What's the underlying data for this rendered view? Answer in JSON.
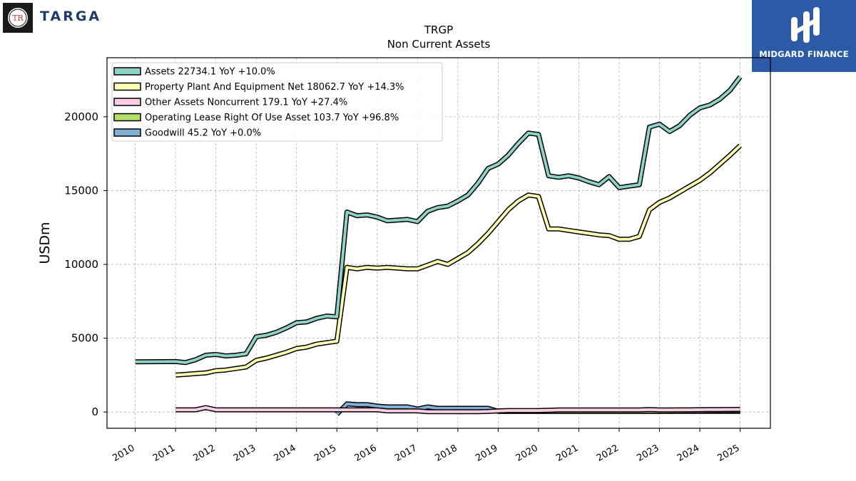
{
  "branding": {
    "left_logo_text": "TARGA",
    "left_logo_mark": "TR",
    "right_logo_text": "MIDGARD FINANCE"
  },
  "chart_data": {
    "type": "line",
    "title": "TRGP",
    "subtitle": "Non Current  Assets",
    "ylabel": "USDm",
    "xlabel": "",
    "xlim": [
      2009.3,
      2025.75
    ],
    "ylim": [
      -1100,
      24000
    ],
    "x_ticks": [
      2010,
      2011,
      2012,
      2013,
      2014,
      2015,
      2016,
      2017,
      2018,
      2019,
      2020,
      2021,
      2022,
      2023,
      2024,
      2025
    ],
    "y_ticks": [
      0,
      5000,
      10000,
      15000,
      20000
    ],
    "y_tick_labels": [
      "0",
      "5000",
      "10000",
      "15000",
      "20000"
    ],
    "grid": true,
    "legend_position": "top-left",
    "series": [
      {
        "name": "Assets",
        "legend_label": "Assets  22734.1 YoY +10.0%",
        "color": "#8dd3c7",
        "points": [
          [
            2010,
            3400
          ],
          [
            2011,
            3420
          ],
          [
            2011.25,
            3350
          ],
          [
            2011.5,
            3550
          ],
          [
            2011.75,
            3850
          ],
          [
            2012,
            3900
          ],
          [
            2012.25,
            3800
          ],
          [
            2012.5,
            3850
          ],
          [
            2012.75,
            3950
          ],
          [
            2013,
            5100
          ],
          [
            2013.25,
            5200
          ],
          [
            2013.5,
            5400
          ],
          [
            2013.75,
            5700
          ],
          [
            2014,
            6050
          ],
          [
            2014.25,
            6100
          ],
          [
            2014.5,
            6350
          ],
          [
            2014.75,
            6500
          ],
          [
            2015,
            6450
          ],
          [
            2015.25,
            13550
          ],
          [
            2015.5,
            13300
          ],
          [
            2015.75,
            13350
          ],
          [
            2016,
            13200
          ],
          [
            2016.25,
            12950
          ],
          [
            2016.5,
            13000
          ],
          [
            2016.75,
            13050
          ],
          [
            2017,
            12900
          ],
          [
            2017.25,
            13600
          ],
          [
            2017.5,
            13850
          ],
          [
            2017.75,
            13950
          ],
          [
            2018,
            14300
          ],
          [
            2018.25,
            14700
          ],
          [
            2018.5,
            15500
          ],
          [
            2018.75,
            16500
          ],
          [
            2019,
            16800
          ],
          [
            2019.25,
            17400
          ],
          [
            2019.5,
            18200
          ],
          [
            2019.75,
            18900
          ],
          [
            2020,
            18800
          ],
          [
            2020.25,
            16000
          ],
          [
            2020.5,
            15900
          ],
          [
            2020.75,
            16000
          ],
          [
            2021,
            15850
          ],
          [
            2021.25,
            15600
          ],
          [
            2021.5,
            15400
          ],
          [
            2021.75,
            15950
          ],
          [
            2022,
            15200
          ],
          [
            2022.25,
            15300
          ],
          [
            2022.5,
            15400
          ],
          [
            2022.75,
            19300
          ],
          [
            2023,
            19500
          ],
          [
            2023.25,
            19000
          ],
          [
            2023.5,
            19400
          ],
          [
            2023.75,
            20100
          ],
          [
            2024,
            20600
          ],
          [
            2024.25,
            20800
          ],
          [
            2024.5,
            21200
          ],
          [
            2024.75,
            21800
          ],
          [
            2025,
            22700
          ]
        ]
      },
      {
        "name": "Property Plant And Equipment Net",
        "legend_label": "Property Plant And Equipment Net  18062.7 YoY +14.3%",
        "color": "#ffffb3",
        "points": [
          [
            2011,
            2500
          ],
          [
            2011.25,
            2550
          ],
          [
            2011.5,
            2600
          ],
          [
            2011.75,
            2650
          ],
          [
            2012,
            2800
          ],
          [
            2012.25,
            2850
          ],
          [
            2012.5,
            2950
          ],
          [
            2012.75,
            3050
          ],
          [
            2013,
            3500
          ],
          [
            2013.25,
            3650
          ],
          [
            2013.5,
            3850
          ],
          [
            2013.75,
            4050
          ],
          [
            2014,
            4300
          ],
          [
            2014.25,
            4400
          ],
          [
            2014.5,
            4600
          ],
          [
            2014.75,
            4700
          ],
          [
            2015,
            4800
          ],
          [
            2015.25,
            9800
          ],
          [
            2015.5,
            9700
          ],
          [
            2015.75,
            9800
          ],
          [
            2016,
            9750
          ],
          [
            2016.25,
            9800
          ],
          [
            2016.5,
            9750
          ],
          [
            2016.75,
            9700
          ],
          [
            2017,
            9700
          ],
          [
            2017.25,
            9950
          ],
          [
            2017.5,
            10200
          ],
          [
            2017.75,
            10000
          ],
          [
            2018,
            10400
          ],
          [
            2018.25,
            10800
          ],
          [
            2018.5,
            11400
          ],
          [
            2018.75,
            12100
          ],
          [
            2019,
            12900
          ],
          [
            2019.25,
            13700
          ],
          [
            2019.5,
            14300
          ],
          [
            2019.75,
            14700
          ],
          [
            2020,
            14600
          ],
          [
            2020.25,
            12400
          ],
          [
            2020.5,
            12400
          ],
          [
            2020.75,
            12300
          ],
          [
            2021,
            12200
          ],
          [
            2021.25,
            12100
          ],
          [
            2021.5,
            12000
          ],
          [
            2021.75,
            11950
          ],
          [
            2022,
            11700
          ],
          [
            2022.25,
            11700
          ],
          [
            2022.5,
            11900
          ],
          [
            2022.75,
            13700
          ],
          [
            2023,
            14200
          ],
          [
            2023.25,
            14500
          ],
          [
            2023.5,
            14900
          ],
          [
            2023.75,
            15300
          ],
          [
            2024,
            15700
          ],
          [
            2024.25,
            16200
          ],
          [
            2024.5,
            16800
          ],
          [
            2024.75,
            17400
          ],
          [
            2025,
            18050
          ]
        ]
      },
      {
        "name": "Other Assets Noncurrent",
        "legend_label": "Other Assets Noncurrent  179.1 YoY +27.4%",
        "color": "#fccde5",
        "points": [
          [
            2011,
            150
          ],
          [
            2011.25,
            150
          ],
          [
            2011.5,
            150
          ],
          [
            2011.75,
            300
          ],
          [
            2012,
            150
          ],
          [
            2012.25,
            150
          ],
          [
            2012.5,
            150
          ],
          [
            2012.75,
            150
          ],
          [
            2013,
            150
          ],
          [
            2013.25,
            150
          ],
          [
            2013.5,
            150
          ],
          [
            2013.75,
            150
          ],
          [
            2014,
            150
          ],
          [
            2014.25,
            150
          ],
          [
            2014.5,
            150
          ],
          [
            2014.75,
            150
          ],
          [
            2015,
            150
          ],
          [
            2015.25,
            150
          ],
          [
            2015.5,
            150
          ],
          [
            2015.75,
            150
          ],
          [
            2016,
            150
          ],
          [
            2016.25,
            80
          ],
          [
            2016.5,
            80
          ],
          [
            2016.75,
            80
          ],
          [
            2017,
            80
          ],
          [
            2017.25,
            20
          ],
          [
            2017.5,
            20
          ],
          [
            2017.75,
            20
          ],
          [
            2018,
            20
          ],
          [
            2018.25,
            20
          ],
          [
            2018.5,
            20
          ],
          [
            2018.75,
            40
          ],
          [
            2019,
            80
          ],
          [
            2019.25,
            100
          ],
          [
            2019.5,
            100
          ],
          [
            2019.75,
            100
          ],
          [
            2020,
            100
          ],
          [
            2020.25,
            120
          ],
          [
            2020.5,
            140
          ],
          [
            2020.75,
            140
          ],
          [
            2021,
            140
          ],
          [
            2021.25,
            140
          ],
          [
            2021.5,
            140
          ],
          [
            2021.75,
            140
          ],
          [
            2022,
            140
          ],
          [
            2022.25,
            140
          ],
          [
            2022.5,
            140
          ],
          [
            2022.75,
            170
          ],
          [
            2023,
            140
          ],
          [
            2023.25,
            140
          ],
          [
            2023.5,
            150
          ],
          [
            2023.75,
            150
          ],
          [
            2024,
            160
          ],
          [
            2024.25,
            165
          ],
          [
            2024.5,
            170
          ],
          [
            2024.75,
            175
          ],
          [
            2025,
            180
          ]
        ]
      },
      {
        "name": "Operating Lease Right Of Use Asset",
        "legend_label": "Operating Lease Right Of Use Asset  103.7 YoY +96.8%",
        "color": "#b3de69",
        "points": [
          [
            2019,
            50
          ],
          [
            2019.5,
            50
          ],
          [
            2020,
            50
          ],
          [
            2020.5,
            50
          ],
          [
            2021,
            50
          ],
          [
            2021.5,
            50
          ],
          [
            2022,
            50
          ],
          [
            2022.5,
            50
          ],
          [
            2023,
            50
          ],
          [
            2023.5,
            60
          ],
          [
            2024,
            70
          ],
          [
            2024.5,
            90
          ],
          [
            2025,
            100
          ]
        ]
      },
      {
        "name": "Goodwill",
        "legend_label": "Goodwill  45.2 YoY +0.0%",
        "color": "#80b1d3",
        "points": [
          [
            2015,
            -150
          ],
          [
            2015.25,
            550
          ],
          [
            2015.5,
            500
          ],
          [
            2015.75,
            500
          ],
          [
            2016,
            400
          ],
          [
            2016.25,
            350
          ],
          [
            2016.5,
            350
          ],
          [
            2016.75,
            350
          ],
          [
            2017,
            200
          ],
          [
            2017.25,
            350
          ],
          [
            2017.5,
            250
          ],
          [
            2017.75,
            250
          ],
          [
            2018,
            250
          ],
          [
            2018.25,
            250
          ],
          [
            2018.5,
            250
          ],
          [
            2018.75,
            250
          ],
          [
            2019,
            50
          ],
          [
            2019.5,
            50
          ],
          [
            2020,
            45
          ],
          [
            2020.5,
            45
          ],
          [
            2021,
            45
          ],
          [
            2021.5,
            45
          ],
          [
            2022,
            45
          ],
          [
            2022.5,
            45
          ],
          [
            2023,
            45
          ],
          [
            2023.5,
            45
          ],
          [
            2024,
            45
          ],
          [
            2024.5,
            45
          ],
          [
            2025,
            45
          ]
        ]
      }
    ]
  }
}
